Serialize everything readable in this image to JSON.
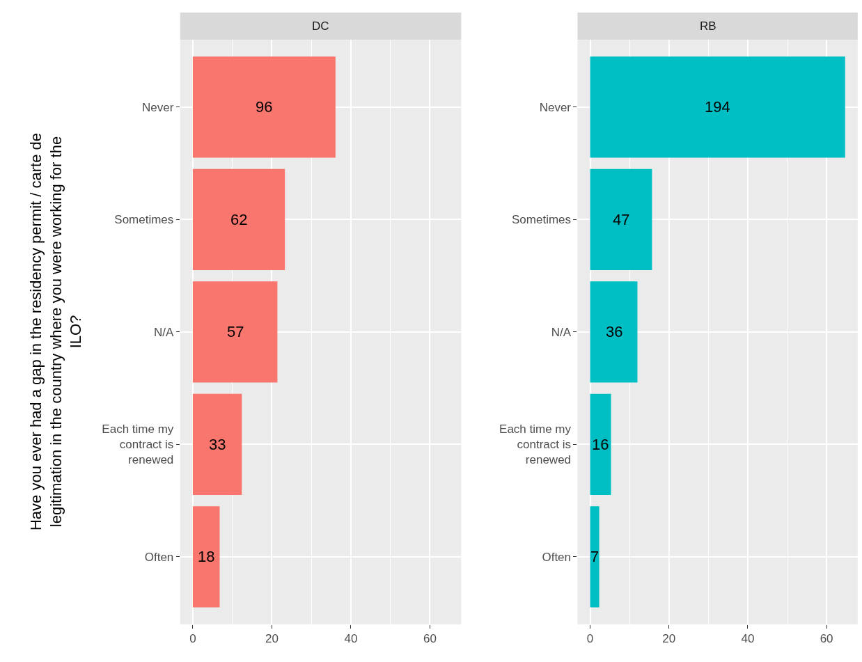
{
  "chart_data": [
    {
      "type": "bar",
      "orientation": "horizontal",
      "title": "DC",
      "ylabel": "Have you ever had a gap in the residency permit / carte de legitimation in the country where you were working for the ILO?",
      "categories": [
        "Never",
        "Sometimes",
        "N/A",
        "Each time my contract is renewed",
        "Often"
      ],
      "values": [
        36.1,
        23.3,
        21.4,
        12.4,
        6.8
      ],
      "color": "#f8766d",
      "xlim": [
        -3.2,
        67.9
      ],
      "xticks": [
        0,
        {
          "value": 10,
          "label": null
        },
        20,
        {
          "value": 30,
          "label": null
        },
        40,
        {
          "value": 50,
          "label": null
        },
        60
      ],
      "grid": true,
      "annotations": [
        {
          "text": "96",
          "x": 18,
          "y": "Never"
        },
        {
          "text": "62",
          "x": 11.6,
          "y": "Sometimes"
        },
        {
          "text": "57",
          "x": 10.7,
          "y": "N/A"
        },
        {
          "text": "33",
          "x": 6.2,
          "y": "Each time my contract is renewed"
        },
        {
          "text": "18",
          "x": 3.4,
          "y": "Often"
        }
      ]
    },
    {
      "type": "bar",
      "orientation": "horizontal",
      "title": "RB",
      "categories": [
        "Never",
        "Sometimes",
        "N/A",
        "Each time my contract is renewed",
        "Often"
      ],
      "values": [
        64.7,
        15.7,
        12.0,
        5.3,
        2.3
      ],
      "color": "#00bfc4",
      "xlim": [
        -3.2,
        67.9
      ],
      "xticks": [
        0,
        {
          "value": 10,
          "label": null
        },
        20,
        {
          "value": 30,
          "label": null
        },
        40,
        {
          "value": 50,
          "label": null
        },
        60
      ],
      "grid": true,
      "annotations": [
        {
          "text": "194",
          "x": 32.4,
          "y": "Never"
        },
        {
          "text": "47",
          "x": 7.8,
          "y": "Sometimes"
        },
        {
          "text": "36",
          "x": 6,
          "y": "N/A"
        },
        {
          "text": "16",
          "x": 2.6,
          "y": "Each time my contract is renewed"
        },
        {
          "text": "7",
          "x": 1.2,
          "y": "Often"
        }
      ]
    }
  ]
}
